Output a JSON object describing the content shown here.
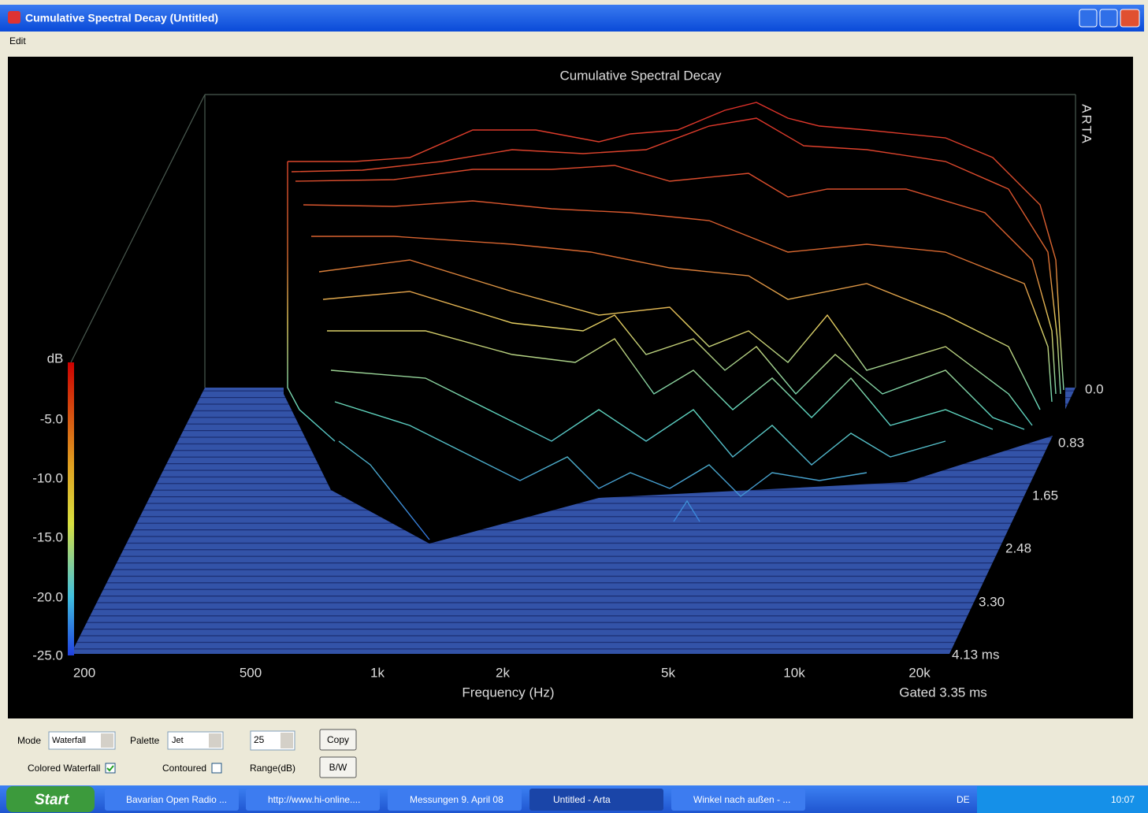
{
  "window": {
    "title": "Cumulative Spectral Decay  (Untitled)",
    "menu": [
      "Edit"
    ]
  },
  "plot": {
    "title": "Cumulative Spectral Decay",
    "watermark": "ARTA",
    "y_label": "dB",
    "y_ticks": [
      "-5.0",
      "-10.0",
      "-15.0",
      "-20.0",
      "-25.0"
    ],
    "time_ticks": [
      "0.0",
      "0.83",
      "1.65",
      "2.48",
      "3.30",
      "4.13 ms"
    ],
    "freq_ticks": [
      "200",
      "500",
      "1k",
      "2k",
      "5k",
      "10k",
      "20k"
    ],
    "x_label": "Frequency (Hz)",
    "note": "Gated 3.35 ms"
  },
  "controls": {
    "mode_label": "Mode",
    "mode_value": "Waterfall",
    "palette_label": "Palette",
    "palette_value": "Jet",
    "range_value": "25",
    "range_label": "Range(dB)",
    "copy": "Copy",
    "bw": "B/W",
    "colored": "Colored Waterfall",
    "contoured": "Contoured"
  },
  "taskbar": {
    "start": "Start",
    "items": [
      "Bavarian Open Radio ...",
      "http://www.hi-online....",
      "Messungen 9. April 08",
      "Untitled - Arta",
      "Winkel nach außen - ..."
    ],
    "lang": "DE",
    "clock": "10:07"
  }
}
